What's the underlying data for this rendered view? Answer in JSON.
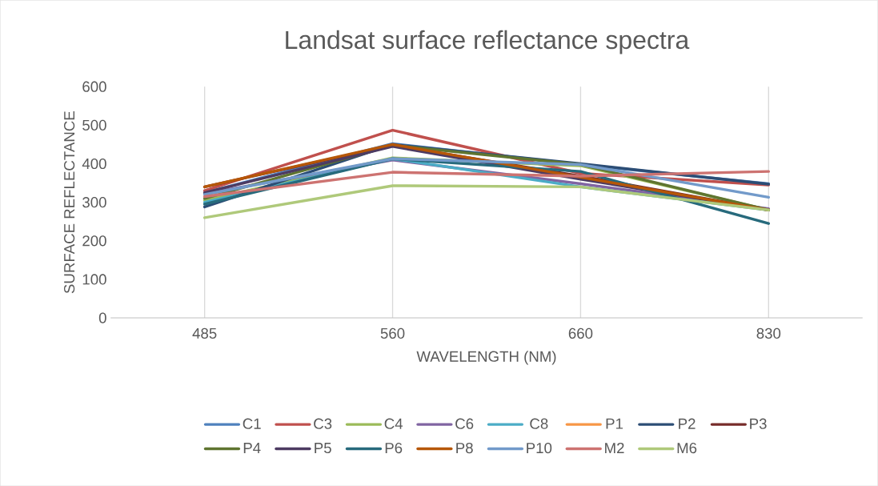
{
  "chart_data": {
    "type": "line",
    "title": "Landsat surface reflectance spectra",
    "xlabel": "WAVELENGTH (NM)",
    "ylabel": "SURFACE REFLECTANCE",
    "categories": [
      "485",
      "560",
      "660",
      "830"
    ],
    "ylim": [
      0,
      600
    ],
    "yticks": [
      0,
      100,
      200,
      300,
      400,
      500,
      600
    ],
    "grid": "x",
    "legend": "bottom",
    "marker": "none",
    "line_style": "solid",
    "series": [
      {
        "name": "C1",
        "color": "#4f81bd",
        "values": [
          325,
          452,
          398,
          348
        ]
      },
      {
        "name": "C3",
        "color": "#c0504d",
        "values": [
          330,
          487,
          375,
          345
        ]
      },
      {
        "name": "C4",
        "color": "#9bbb59",
        "values": [
          305,
          415,
          395,
          280
        ]
      },
      {
        "name": "C6",
        "color": "#8064a2",
        "values": [
          322,
          410,
          348,
          283
        ]
      },
      {
        "name": "C8",
        "color": "#4bacc6",
        "values": [
          300,
          413,
          340,
          280
        ]
      },
      {
        "name": "P1",
        "color": "#f79646",
        "values": [
          null,
          null,
          null,
          null
        ]
      },
      {
        "name": "P2",
        "color": "#2c4d75",
        "values": [
          288,
          450,
          400,
          347
        ]
      },
      {
        "name": "P3",
        "color": "#772c2a",
        "values": [
          340,
          448,
          368,
          280
        ]
      },
      {
        "name": "P4",
        "color": "#5f7530",
        "values": [
          310,
          448,
          398,
          280
        ]
      },
      {
        "name": "P5",
        "color": "#4d3b62",
        "values": [
          325,
          445,
          360,
          280
        ]
      },
      {
        "name": "P6",
        "color": "#276a7c",
        "values": [
          295,
          413,
          380,
          245
        ]
      },
      {
        "name": "P8",
        "color": "#b65708",
        "values": [
          340,
          450,
          365,
          280
        ]
      },
      {
        "name": "P10",
        "color": "#729aca",
        "values": [
          320,
          413,
          398,
          313
        ]
      },
      {
        "name": "M2",
        "color": "#cd7371",
        "values": [
          315,
          378,
          368,
          380
        ]
      },
      {
        "name": "M6",
        "color": "#afc97a",
        "values": [
          260,
          343,
          340,
          280
        ]
      }
    ]
  }
}
